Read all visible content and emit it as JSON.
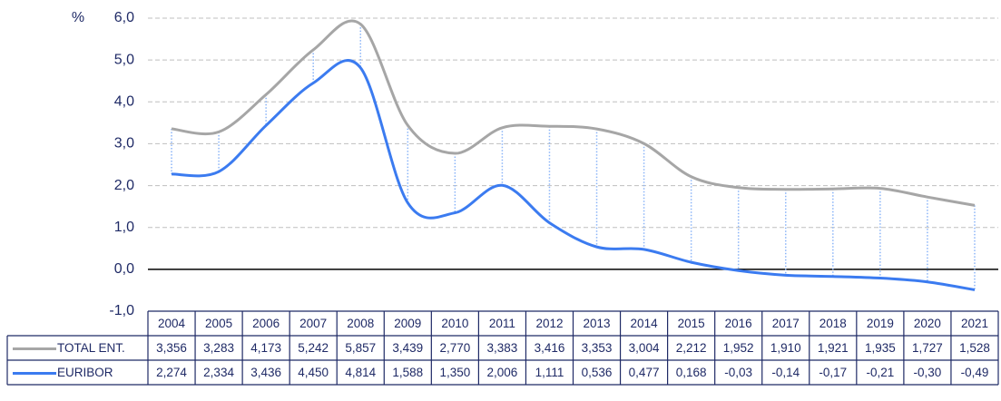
{
  "chart_data": {
    "type": "line",
    "ylabel": "%",
    "categories": [
      "2004",
      "2005",
      "2006",
      "2007",
      "2008",
      "2009",
      "2010",
      "2011",
      "2012",
      "2013",
      "2014",
      "2015",
      "2016",
      "2017",
      "2018",
      "2019",
      "2020",
      "2021"
    ],
    "series": [
      {
        "name": "TOTAL ENT.",
        "color": "#a6a6a6",
        "values": [
          3.356,
          3.283,
          4.173,
          5.242,
          5.857,
          3.439,
          2.77,
          3.383,
          3.416,
          3.353,
          3.004,
          2.212,
          1.952,
          1.91,
          1.921,
          1.935,
          1.727,
          1.528
        ],
        "value_labels": [
          "3,356",
          "3,283",
          "4,173",
          "5,242",
          "5,857",
          "3,439",
          "2,770",
          "3,383",
          "3,416",
          "3,353",
          "3,004",
          "2,212",
          "1,952",
          "1,910",
          "1,921",
          "1,935",
          "1,727",
          "1,528"
        ]
      },
      {
        "name": "EURIBOR",
        "color": "#3b7bf0",
        "values": [
          2.274,
          2.334,
          3.436,
          4.45,
          4.814,
          1.588,
          1.35,
          2.006,
          1.111,
          0.536,
          0.477,
          0.168,
          -0.03,
          -0.14,
          -0.17,
          -0.21,
          -0.3,
          -0.49
        ],
        "value_labels": [
          "2,274",
          "2,334",
          "3,436",
          "4,450",
          "4,814",
          "1,588",
          "1,350",
          "2,006",
          "1,111",
          "0,536",
          "0,477",
          "0,168",
          "-0,03",
          "-0,14",
          "-0,17",
          "-0,21",
          "-0,30",
          "-0,49"
        ]
      }
    ],
    "ylim": [
      -1,
      6
    ],
    "yticks": [
      {
        "value": -1,
        "label": "-1,0"
      },
      {
        "value": 0,
        "label": "0,0"
      },
      {
        "value": 1,
        "label": "1,0"
      },
      {
        "value": 2,
        "label": "2,0"
      },
      {
        "value": 3,
        "label": "3,0"
      },
      {
        "value": 4,
        "label": "4,0"
      },
      {
        "value": 5,
        "label": "5,0"
      },
      {
        "value": 6,
        "label": "6,0"
      }
    ],
    "grid": true
  }
}
